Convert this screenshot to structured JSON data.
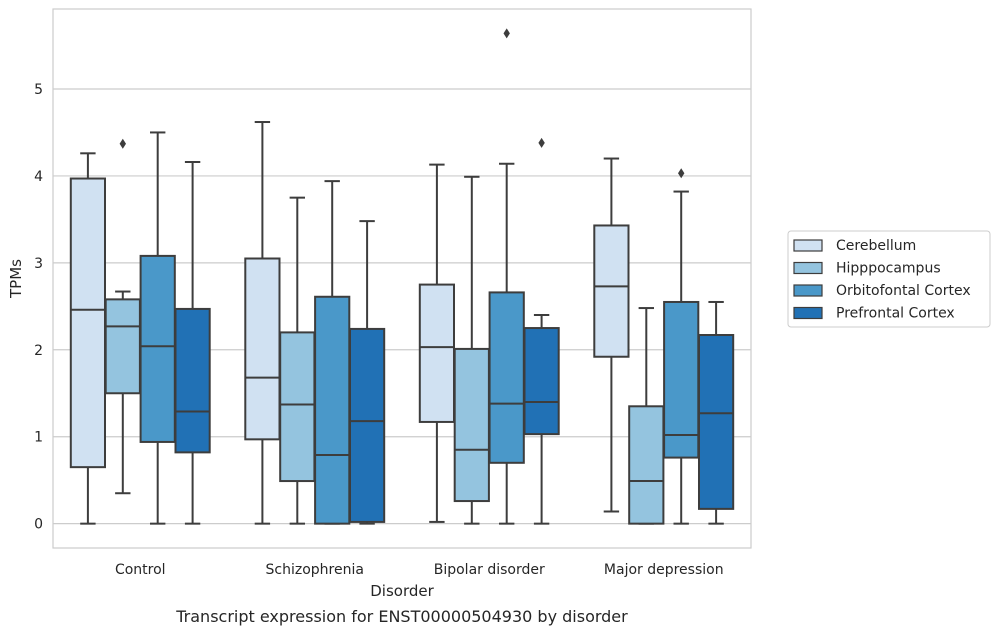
{
  "caption": "Transcript expression for ENST00000504930 by disorder",
  "chart_data": {
    "type": "boxplot",
    "xlabel": "Disorder",
    "ylabel": "TPMs",
    "ylim": [
      -0.28,
      5.92
    ],
    "yticks": [
      0,
      1,
      2,
      3,
      4,
      5
    ],
    "categories": [
      "Control",
      "Schizophrenia",
      "Bipolar disorder",
      "Major depression"
    ],
    "grid": "horizontal",
    "legend_position": "right",
    "series": [
      {
        "name": "Cerebellum",
        "color": "#d0e1f2",
        "boxes": [
          {
            "whislo": 0.0,
            "q1": 0.65,
            "med": 2.46,
            "q3": 3.97,
            "whishi": 4.26,
            "fliers": []
          },
          {
            "whislo": 0.0,
            "q1": 0.97,
            "med": 1.68,
            "q3": 3.05,
            "whishi": 4.62,
            "fliers": []
          },
          {
            "whislo": 0.02,
            "q1": 1.17,
            "med": 2.03,
            "q3": 2.75,
            "whishi": 4.13,
            "fliers": []
          },
          {
            "whislo": 0.14,
            "q1": 1.92,
            "med": 2.73,
            "q3": 3.43,
            "whishi": 4.2,
            "fliers": []
          }
        ]
      },
      {
        "name": "Hipppocampus",
        "color": "#94c4df",
        "boxes": [
          {
            "whislo": 0.35,
            "q1": 1.5,
            "med": 2.27,
            "q3": 2.58,
            "whishi": 2.67,
            "fliers": [
              4.37
            ]
          },
          {
            "whislo": 0.0,
            "q1": 0.49,
            "med": 1.37,
            "q3": 2.2,
            "whishi": 3.75,
            "fliers": []
          },
          {
            "whislo": 0.0,
            "q1": 0.26,
            "med": 0.85,
            "q3": 2.01,
            "whishi": 3.99,
            "fliers": []
          },
          {
            "whislo": 0.0,
            "q1": 0.0,
            "med": 0.49,
            "q3": 1.35,
            "whishi": 2.48,
            "fliers": []
          }
        ]
      },
      {
        "name": "Orbitofontal Cortex",
        "color": "#4a98c9",
        "boxes": [
          {
            "whislo": 0.0,
            "q1": 0.94,
            "med": 2.04,
            "q3": 3.08,
            "whishi": 4.5,
            "fliers": []
          },
          {
            "whislo": 0.0,
            "q1": 0.0,
            "med": 0.79,
            "q3": 2.61,
            "whishi": 3.94,
            "fliers": []
          },
          {
            "whislo": 0.0,
            "q1": 0.7,
            "med": 1.38,
            "q3": 2.66,
            "whishi": 4.14,
            "fliers": [
              5.64
            ]
          },
          {
            "whislo": 0.0,
            "q1": 0.76,
            "med": 1.02,
            "q3": 2.55,
            "whishi": 3.82,
            "fliers": [
              4.03
            ]
          }
        ]
      },
      {
        "name": "Prefrontal Cortex",
        "color": "#2171b5",
        "boxes": [
          {
            "whislo": 0.0,
            "q1": 0.82,
            "med": 1.29,
            "q3": 2.47,
            "whishi": 4.16,
            "fliers": []
          },
          {
            "whislo": 0.0,
            "q1": 0.02,
            "med": 1.18,
            "q3": 2.24,
            "whishi": 3.48,
            "fliers": []
          },
          {
            "whislo": 0.0,
            "q1": 1.03,
            "med": 1.4,
            "q3": 2.25,
            "whishi": 2.4,
            "fliers": [
              4.38
            ]
          },
          {
            "whislo": 0.0,
            "q1": 0.17,
            "med": 1.27,
            "q3": 2.17,
            "whishi": 2.55,
            "fliers": []
          }
        ]
      }
    ]
  }
}
